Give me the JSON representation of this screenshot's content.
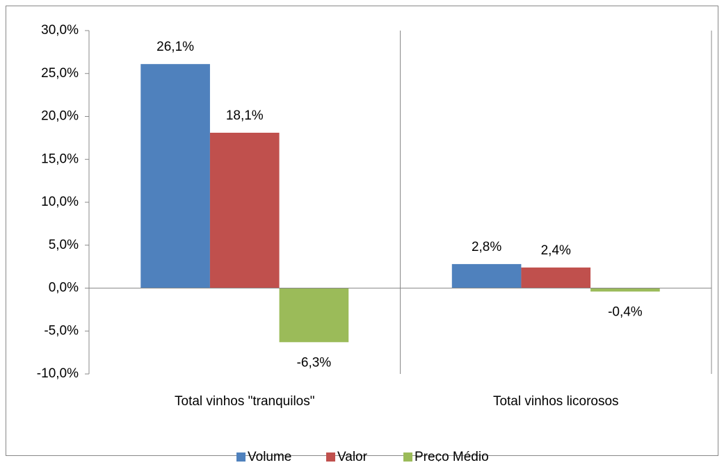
{
  "chart_data": {
    "type": "bar",
    "categories": [
      "Total vinhos \"tranquilos\"",
      "Total vinhos licorosos"
    ],
    "series": [
      {
        "name": "Volume",
        "color": "#4f81bd",
        "values": [
          26.1,
          2.8
        ],
        "value_labels": [
          "26,1%",
          "2,8%"
        ]
      },
      {
        "name": "Valor",
        "color": "#c0504d",
        "values": [
          18.1,
          2.4
        ],
        "value_labels": [
          "18,1%",
          "2,4%"
        ]
      },
      {
        "name": "Preço Médio",
        "color": "#9bbb59",
        "values": [
          -6.3,
          -0.4
        ],
        "value_labels": [
          "-6,3%",
          "-0,4%"
        ]
      }
    ],
    "ylim": [
      -10,
      30
    ],
    "yticks": [
      {
        "value": -10,
        "label": "-10,0%"
      },
      {
        "value": -5,
        "label": "-5,0%"
      },
      {
        "value": 0,
        "label": "0,0%"
      },
      {
        "value": 5,
        "label": "5,0%"
      },
      {
        "value": 10,
        "label": "10,0%"
      },
      {
        "value": 15,
        "label": "15,0%"
      },
      {
        "value": 20,
        "label": "20,0%"
      },
      {
        "value": 25,
        "label": "25,0%"
      },
      {
        "value": 30,
        "label": "30,0%"
      }
    ],
    "legend": "bottom"
  }
}
